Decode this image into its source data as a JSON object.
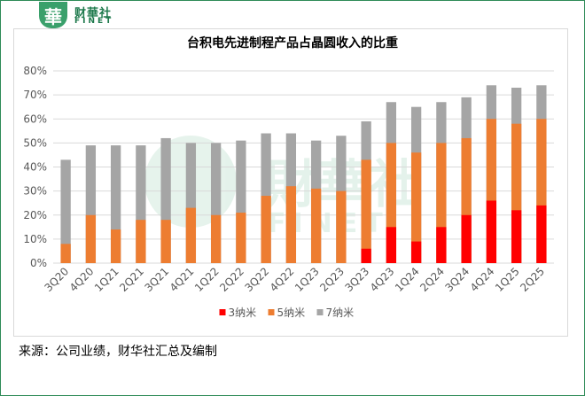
{
  "branding": {
    "logo_glyph": "華",
    "name_cn": "财華社",
    "name_en": "FINET"
  },
  "source_note": "来源：公司业绩，财华社汇总及编制",
  "watermark": {
    "cn": "財華社",
    "en": "FINET"
  },
  "chart_data": {
    "type": "bar",
    "stacked": "overlay",
    "title": "台积电先进制程产品占晶圆收入的比重",
    "categories": [
      "3Q20",
      "4Q20",
      "1Q21",
      "2Q21",
      "3Q21",
      "4Q21",
      "1Q22",
      "2Q22",
      "3Q22",
      "4Q22",
      "1Q23",
      "2Q23",
      "3Q23",
      "4Q23",
      "1Q24",
      "2Q24",
      "3Q24",
      "4Q24",
      "1Q25",
      "2Q25"
    ],
    "series": [
      {
        "name": "3纳米",
        "color": "#ff0000",
        "values": [
          0,
          0,
          0,
          0,
          0,
          0,
          0,
          0,
          0,
          0,
          0,
          0,
          6,
          15,
          9,
          15,
          20,
          26,
          22,
          24
        ]
      },
      {
        "name": "5纳米",
        "color": "#ed7d31",
        "values": [
          8,
          20,
          14,
          18,
          18,
          23,
          20,
          21,
          28,
          32,
          31,
          30,
          43,
          50,
          46,
          50,
          52,
          60,
          58,
          60
        ]
      },
      {
        "name": "7纳米",
        "color": "#a5a5a5",
        "values": [
          43,
          49,
          49,
          49,
          52,
          50,
          50,
          51,
          54,
          54,
          51,
          53,
          59,
          67,
          65,
          67,
          69,
          74,
          73,
          74
        ]
      }
    ],
    "yticks": [
      "0%",
      "10%",
      "20%",
      "30%",
      "40%",
      "50%",
      "60%",
      "70%",
      "80%"
    ],
    "ylim": [
      0,
      80
    ],
    "grid": true,
    "legend_position": "bottom"
  }
}
